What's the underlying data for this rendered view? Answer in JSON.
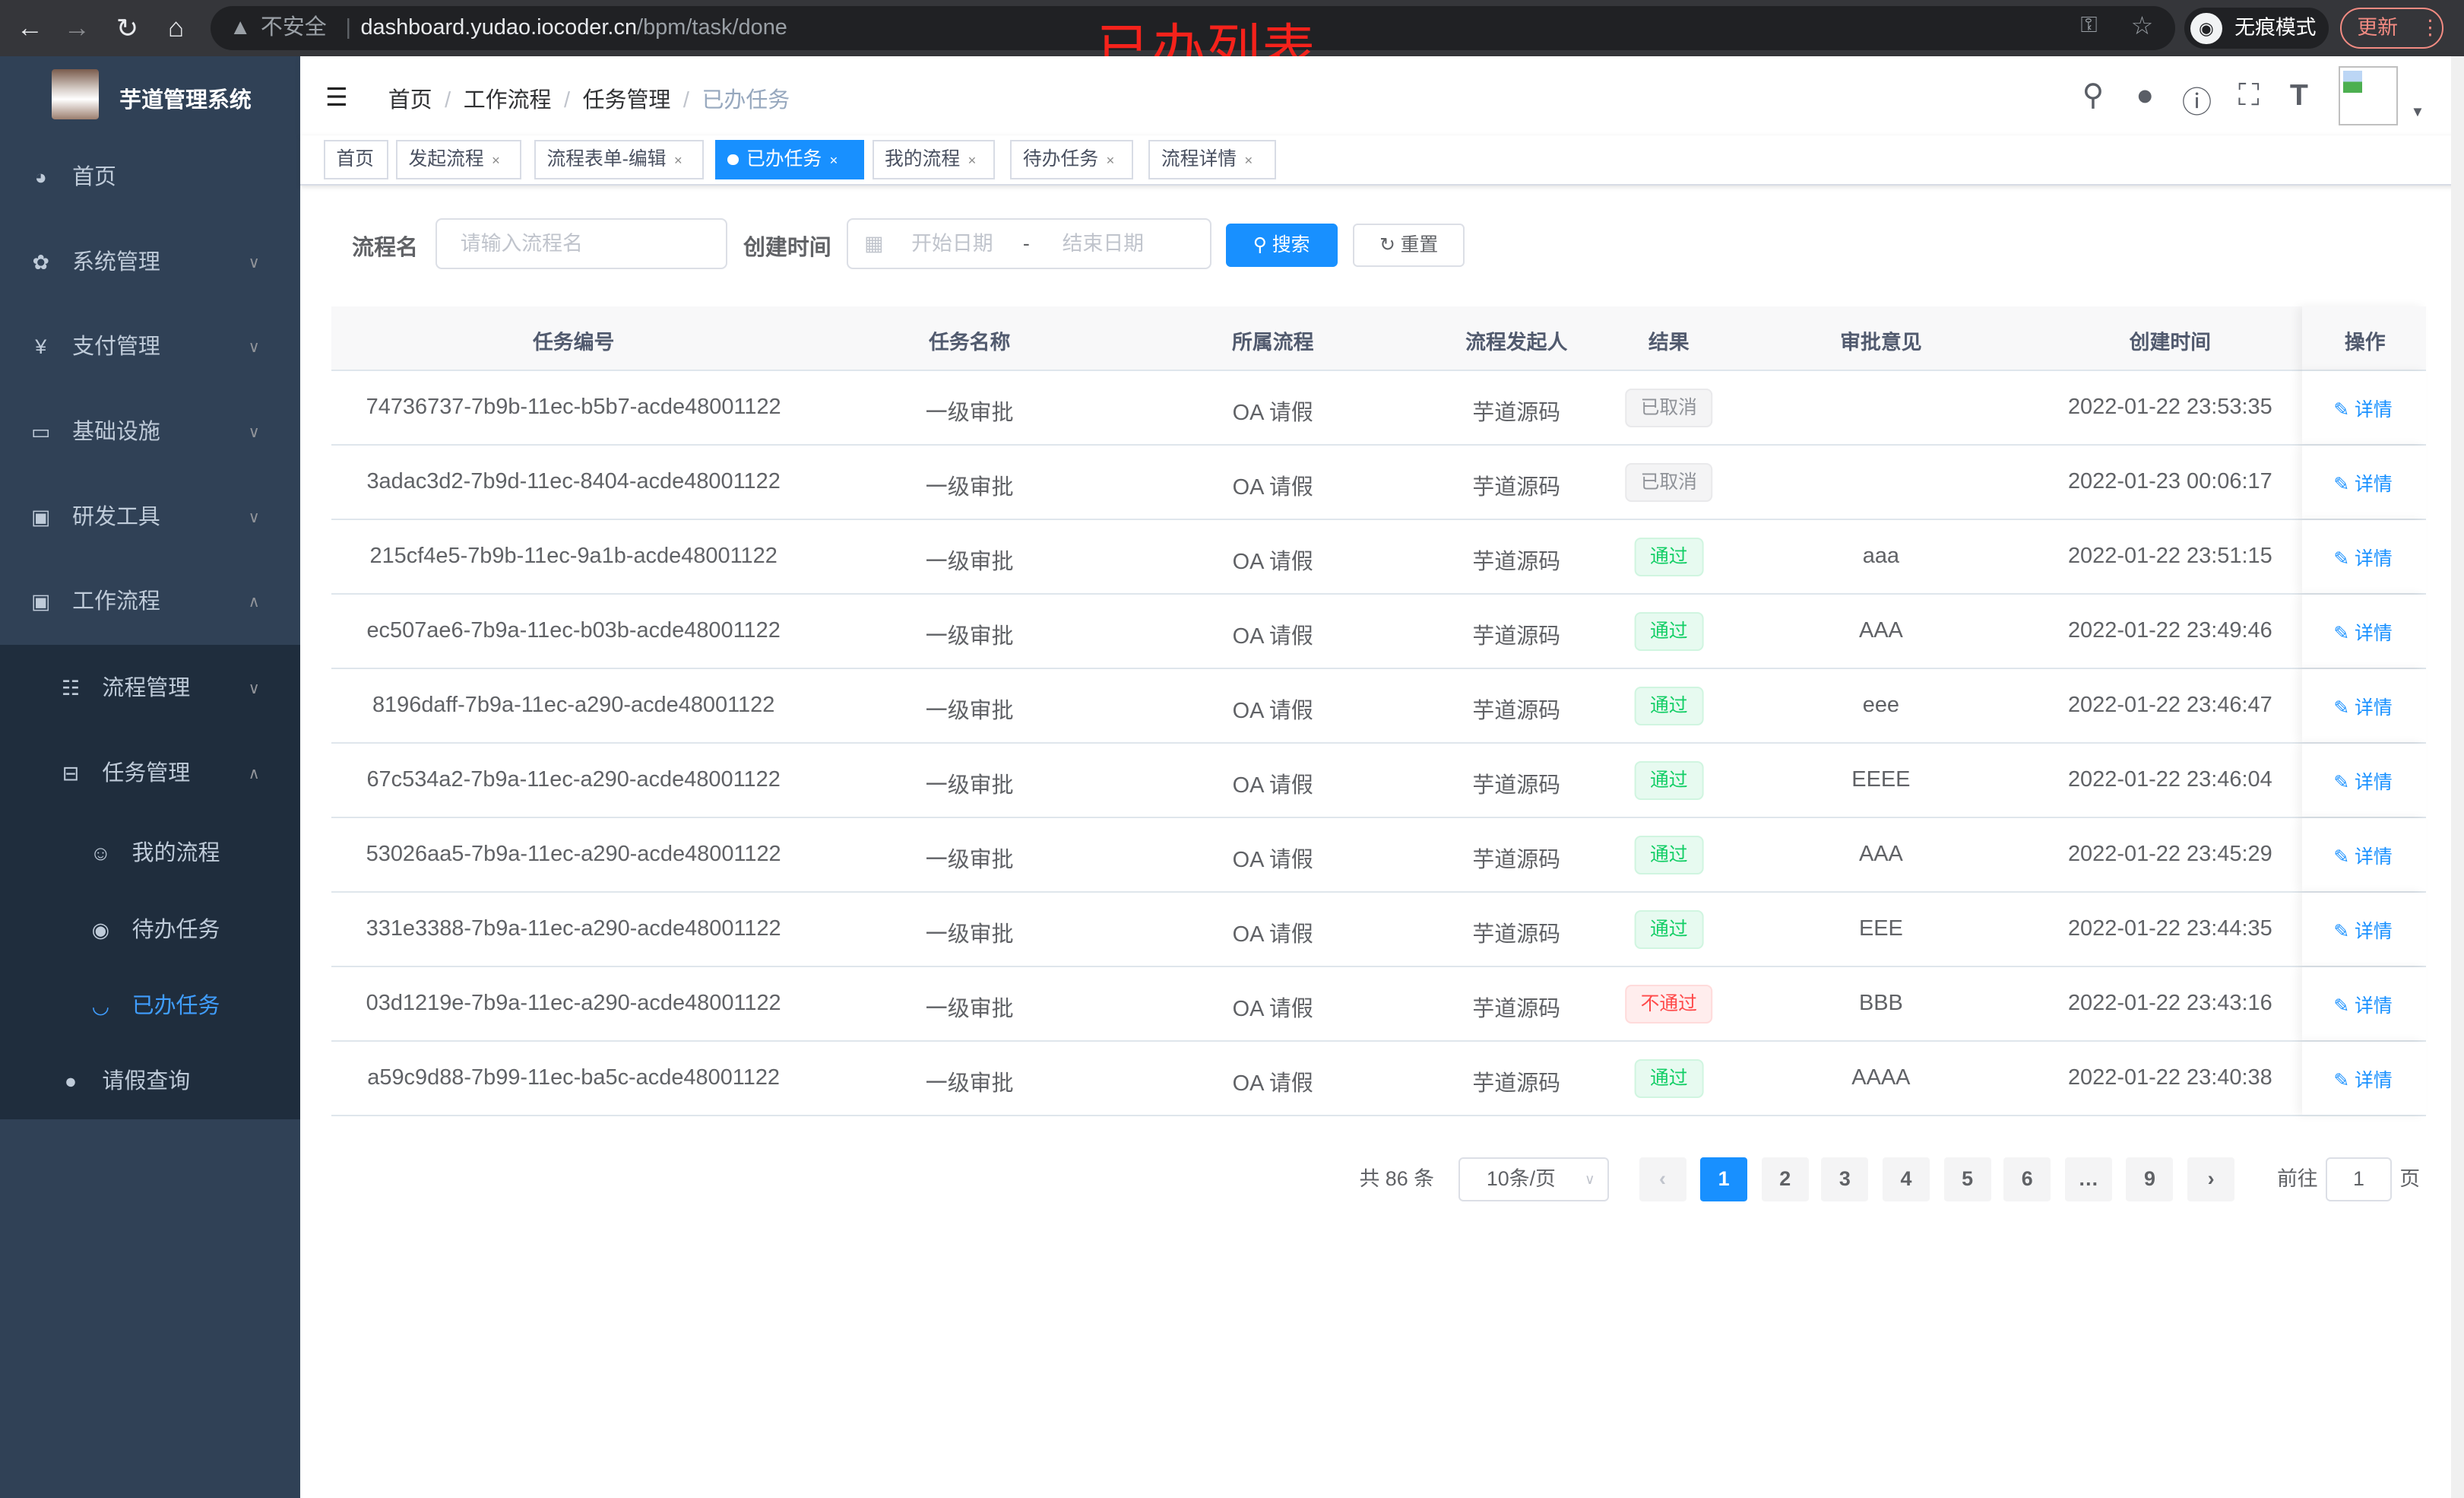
{
  "browser": {
    "insecure": "不安全",
    "url_host": "dashboard.yudao.iocoder.cn",
    "url_path": "/bpm/task/done",
    "incognito": "无痕模式",
    "update": "更新"
  },
  "overlay_title": "已办列表",
  "sidebar": {
    "logo_text": "芋道管理系统",
    "items": [
      {
        "label": "首页",
        "icon": "dashboard-icon"
      },
      {
        "label": "系统管理",
        "icon": "gear-icon"
      },
      {
        "label": "支付管理",
        "icon": "yen-icon"
      },
      {
        "label": "基础设施",
        "icon": "monitor-icon"
      },
      {
        "label": "研发工具",
        "icon": "toolbox-icon"
      },
      {
        "label": "工作流程",
        "icon": "toolbox-icon"
      },
      {
        "label": "流程管理",
        "icon": "tree-list-icon"
      },
      {
        "label": "任务管理",
        "icon": "cascade-icon"
      },
      {
        "label": "我的流程",
        "icon": "people-icon"
      },
      {
        "label": "待办任务",
        "icon": "eye-icon"
      },
      {
        "label": "已办任务",
        "icon": "eye-closed-icon"
      },
      {
        "label": "请假查询",
        "icon": "user-icon"
      }
    ]
  },
  "breadcrumb": [
    "首页",
    "工作流程",
    "任务管理",
    "已办任务"
  ],
  "tags": [
    "首页",
    "发起流程",
    "流程表单-编辑",
    "已办任务",
    "我的流程",
    "待办任务",
    "流程详情"
  ],
  "search": {
    "name_label": "流程名",
    "name_placeholder": "请输入流程名",
    "time_label": "创建时间",
    "start_placeholder": "开始日期",
    "range_sep": "-",
    "end_placeholder": "结束日期",
    "search_btn": "搜索",
    "reset_btn": "重置"
  },
  "table": {
    "headers": [
      "任务编号",
      "任务名称",
      "所属流程",
      "流程发起人",
      "结果",
      "审批意见",
      "创建时间",
      "操作"
    ],
    "rows": [
      {
        "id": "74736737-7b9b-11ec-b5b7-acde48001122",
        "name": "一级审批",
        "process": "OA 请假",
        "initiator": "芋道源码",
        "result": "已取消",
        "status": "cancel",
        "comment": "",
        "time": "2022-01-22 23:53:35",
        "op": "详情"
      },
      {
        "id": "3adac3d2-7b9d-11ec-8404-acde48001122",
        "name": "一级审批",
        "process": "OA 请假",
        "initiator": "芋道源码",
        "result": "已取消",
        "status": "cancel",
        "comment": "",
        "time": "2022-01-23 00:06:17",
        "op": "详情"
      },
      {
        "id": "215cf4e5-7b9b-11ec-9a1b-acde48001122",
        "name": "一级审批",
        "process": "OA 请假",
        "initiator": "芋道源码",
        "result": "通过",
        "status": "pass",
        "comment": "aaa",
        "time": "2022-01-22 23:51:15",
        "op": "详情"
      },
      {
        "id": "ec507ae6-7b9a-11ec-b03b-acde48001122",
        "name": "一级审批",
        "process": "OA 请假",
        "initiator": "芋道源码",
        "result": "通过",
        "status": "pass",
        "comment": "AAA",
        "time": "2022-01-22 23:49:46",
        "op": "详情"
      },
      {
        "id": "8196daff-7b9a-11ec-a290-acde48001122",
        "name": "一级审批",
        "process": "OA 请假",
        "initiator": "芋道源码",
        "result": "通过",
        "status": "pass",
        "comment": "eee",
        "time": "2022-01-22 23:46:47",
        "op": "详情"
      },
      {
        "id": "67c534a2-7b9a-11ec-a290-acde48001122",
        "name": "一级审批",
        "process": "OA 请假",
        "initiator": "芋道源码",
        "result": "通过",
        "status": "pass",
        "comment": "EEEE",
        "time": "2022-01-22 23:46:04",
        "op": "详情"
      },
      {
        "id": "53026aa5-7b9a-11ec-a290-acde48001122",
        "name": "一级审批",
        "process": "OA 请假",
        "initiator": "芋道源码",
        "result": "通过",
        "status": "pass",
        "comment": "AAA",
        "time": "2022-01-22 23:45:29",
        "op": "详情"
      },
      {
        "id": "331e3388-7b9a-11ec-a290-acde48001122",
        "name": "一级审批",
        "process": "OA 请假",
        "initiator": "芋道源码",
        "result": "通过",
        "status": "pass",
        "comment": "EEE",
        "time": "2022-01-22 23:44:35",
        "op": "详情"
      },
      {
        "id": "03d1219e-7b9a-11ec-a290-acde48001122",
        "name": "一级审批",
        "process": "OA 请假",
        "initiator": "芋道源码",
        "result": "不通过",
        "status": "reject",
        "comment": "BBB",
        "time": "2022-01-22 23:43:16",
        "op": "详情"
      },
      {
        "id": "a59c9d88-7b99-11ec-ba5c-acde48001122",
        "name": "一级审批",
        "process": "OA 请假",
        "initiator": "芋道源码",
        "result": "通过",
        "status": "pass",
        "comment": "AAAA",
        "time": "2022-01-22 23:40:38",
        "op": "详情"
      }
    ]
  },
  "pagination": {
    "total": "共 86 条",
    "page_size": "10条/页",
    "pages": [
      "1",
      "2",
      "3",
      "4",
      "5",
      "6",
      "…",
      "9"
    ],
    "current": "1",
    "goto_label": "前往",
    "goto_value": "1",
    "page_suffix": "页"
  },
  "colors": {
    "primary": "#1890ff",
    "sidebar_bg": "#304156",
    "submenu_bg": "#1f2d3d",
    "active_menu": "#409eff",
    "pass": "#13ce66",
    "reject": "#ff4949",
    "cancel": "#909399"
  }
}
